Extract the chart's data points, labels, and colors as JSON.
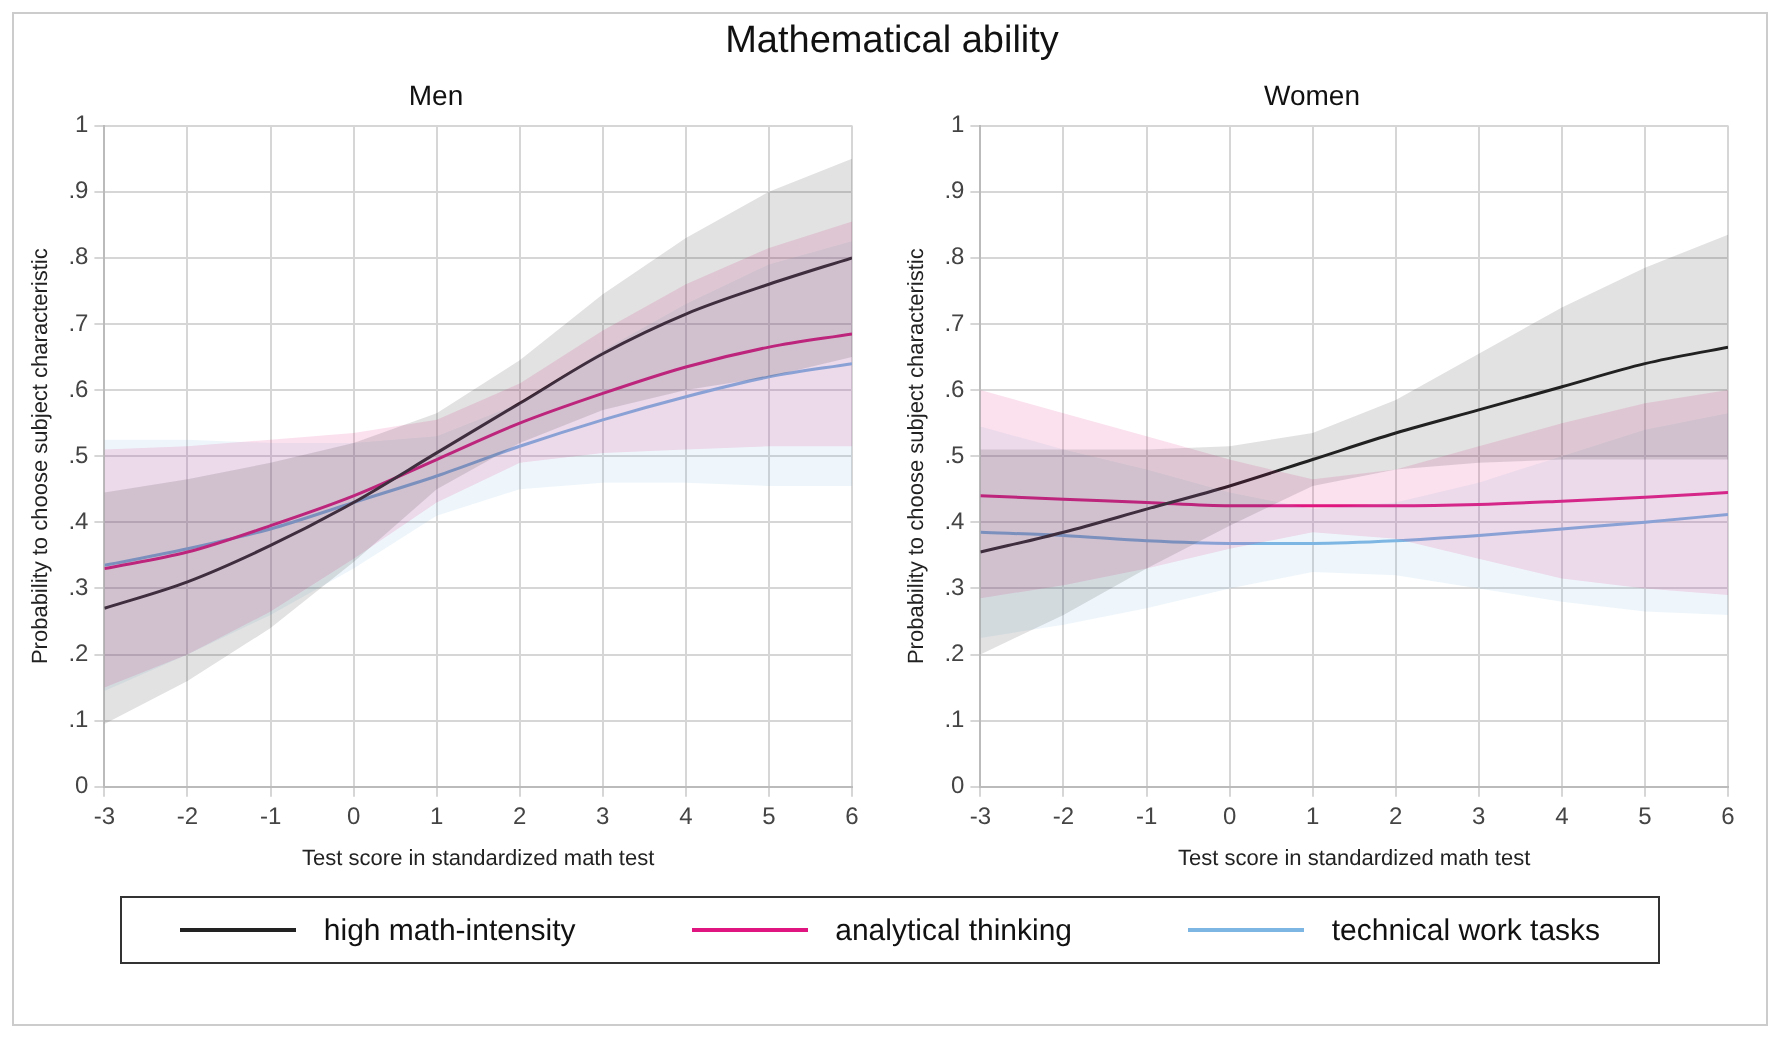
{
  "chart_data": [
    {
      "type": "line",
      "title": "Mathematical ability",
      "subtitle": "Men",
      "xlabel": "Test score in standardized math test",
      "ylabel": "Probability to choose subject characteristic",
      "x": [
        -3,
        -2,
        -1,
        0,
        1,
        2,
        3,
        4,
        5,
        6
      ],
      "xlim": [
        -3,
        6
      ],
      "xticks": [
        -3,
        -2,
        -1,
        0,
        1,
        2,
        3,
        4,
        5,
        6
      ],
      "ylim": [
        0,
        1
      ],
      "yticks": [
        {
          "value": 0,
          "label": "0"
        },
        {
          "value": 0.1,
          "label": ".1"
        },
        {
          "value": 0.2,
          "label": ".2"
        },
        {
          "value": 0.3,
          "label": ".3"
        },
        {
          "value": 0.4,
          "label": ".4"
        },
        {
          "value": 0.5,
          "label": ".5"
        },
        {
          "value": 0.6,
          "label": ".6"
        },
        {
          "value": 0.7,
          "label": ".7"
        },
        {
          "value": 0.8,
          "label": ".8"
        },
        {
          "value": 0.9,
          "label": ".9"
        },
        {
          "value": 1,
          "label": "1"
        }
      ],
      "grid": true,
      "legend": "bottom",
      "marker": "none",
      "line_style": "solid",
      "series": [
        {
          "name": "high math-intensity",
          "color": "#222222",
          "values": [
            0.27,
            0.31,
            0.365,
            0.43,
            0.505,
            0.58,
            0.655,
            0.715,
            0.76,
            0.8
          ],
          "lower": [
            0.095,
            0.16,
            0.24,
            0.34,
            0.45,
            0.52,
            0.57,
            0.6,
            0.62,
            0.65
          ],
          "upper": [
            0.445,
            0.465,
            0.49,
            0.52,
            0.565,
            0.645,
            0.745,
            0.83,
            0.9,
            0.95
          ]
        },
        {
          "name": "analytical thinking",
          "color": "#e0157f",
          "values": [
            0.33,
            0.355,
            0.395,
            0.44,
            0.495,
            0.55,
            0.595,
            0.635,
            0.665,
            0.685
          ],
          "lower": [
            0.15,
            0.2,
            0.265,
            0.345,
            0.43,
            0.49,
            0.505,
            0.51,
            0.515,
            0.515
          ],
          "upper": [
            0.51,
            0.515,
            0.525,
            0.535,
            0.555,
            0.61,
            0.69,
            0.76,
            0.815,
            0.855
          ]
        },
        {
          "name": "technical work tasks",
          "color": "#7eb6e3",
          "values": [
            0.335,
            0.36,
            0.39,
            0.43,
            0.47,
            0.515,
            0.555,
            0.59,
            0.62,
            0.64
          ],
          "lower": [
            0.145,
            0.2,
            0.26,
            0.33,
            0.41,
            0.45,
            0.46,
            0.46,
            0.455,
            0.455
          ],
          "upper": [
            0.525,
            0.525,
            0.52,
            0.52,
            0.53,
            0.58,
            0.66,
            0.73,
            0.79,
            0.825
          ]
        }
      ]
    },
    {
      "type": "line",
      "title": "Women",
      "xlabel": "Test score in standardized math test",
      "ylabel": "Probability to choose subject characteristic",
      "x": [
        -3,
        -2,
        -1,
        0,
        1,
        2,
        3,
        4,
        5,
        6
      ],
      "xlim": [
        -3,
        6
      ],
      "xticks": [
        -3,
        -2,
        -1,
        0,
        1,
        2,
        3,
        4,
        5,
        6
      ],
      "ylim": [
        0,
        1
      ],
      "yticks": [
        {
          "value": 0,
          "label": "0"
        },
        {
          "value": 0.1,
          "label": ".1"
        },
        {
          "value": 0.2,
          "label": ".2"
        },
        {
          "value": 0.3,
          "label": ".3"
        },
        {
          "value": 0.4,
          "label": ".4"
        },
        {
          "value": 0.5,
          "label": ".5"
        },
        {
          "value": 0.6,
          "label": ".6"
        },
        {
          "value": 0.7,
          "label": ".7"
        },
        {
          "value": 0.8,
          "label": ".8"
        },
        {
          "value": 0.9,
          "label": ".9"
        },
        {
          "value": 1,
          "label": "1"
        }
      ],
      "grid": true,
      "legend": "bottom",
      "marker": "none",
      "line_style": "solid",
      "series": [
        {
          "name": "high math-intensity",
          "color": "#222222",
          "values": [
            0.355,
            0.385,
            0.42,
            0.455,
            0.495,
            0.535,
            0.57,
            0.605,
            0.64,
            0.665
          ],
          "lower": [
            0.2,
            0.26,
            0.33,
            0.395,
            0.455,
            0.48,
            0.49,
            0.495,
            0.495,
            0.495
          ],
          "upper": [
            0.51,
            0.51,
            0.51,
            0.515,
            0.535,
            0.585,
            0.655,
            0.725,
            0.785,
            0.835
          ]
        },
        {
          "name": "analytical thinking",
          "color": "#e0157f",
          "values": [
            0.44,
            0.435,
            0.43,
            0.425,
            0.425,
            0.425,
            0.427,
            0.432,
            0.438,
            0.445
          ],
          "lower": [
            0.285,
            0.305,
            0.33,
            0.36,
            0.385,
            0.375,
            0.345,
            0.315,
            0.3,
            0.29
          ],
          "upper": [
            0.6,
            0.565,
            0.53,
            0.495,
            0.465,
            0.48,
            0.515,
            0.55,
            0.58,
            0.6
          ]
        },
        {
          "name": "technical work tasks",
          "color": "#7eb6e3",
          "values": [
            0.385,
            0.38,
            0.372,
            0.368,
            0.368,
            0.372,
            0.38,
            0.39,
            0.4,
            0.412
          ],
          "lower": [
            0.225,
            0.245,
            0.27,
            0.3,
            0.325,
            0.32,
            0.3,
            0.28,
            0.265,
            0.26
          ],
          "upper": [
            0.545,
            0.51,
            0.48,
            0.445,
            0.42,
            0.43,
            0.46,
            0.5,
            0.54,
            0.565
          ]
        }
      ]
    }
  ]
}
